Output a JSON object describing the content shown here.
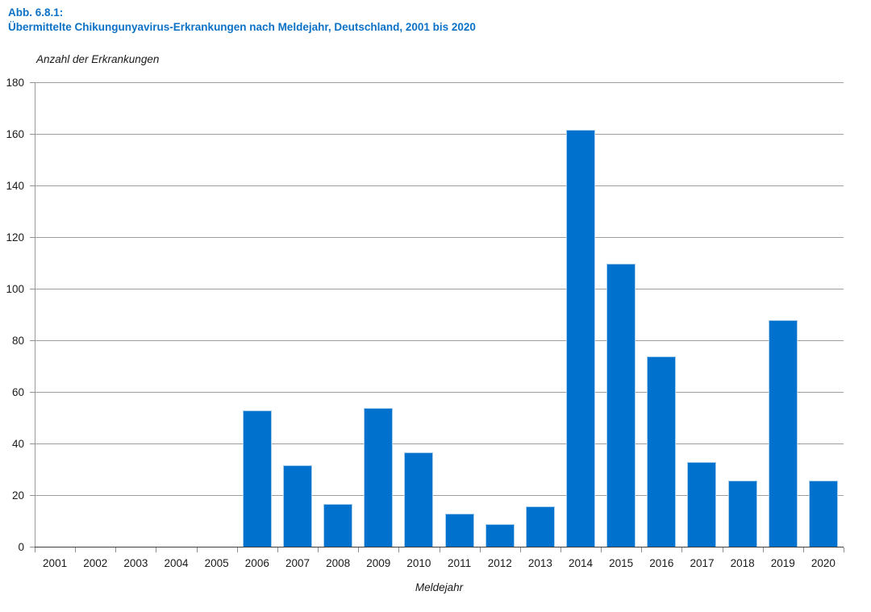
{
  "figure": {
    "label": "Abb. 6.8.1:",
    "title": "Übermittelte Chikungunyavirus-Erkrankungen nach Meldejahr, Deutschland, 2001 bis 2020"
  },
  "chart_data": {
    "type": "bar",
    "title": "Übermittelte Chikungunyavirus-Erkrankungen nach Meldejahr, Deutschland, 2001 bis 2020",
    "xlabel": "Meldejahr",
    "ylabel": "Anzahl der Erkrankungen",
    "categories": [
      "2001",
      "2002",
      "2003",
      "2004",
      "2005",
      "2006",
      "2007",
      "2008",
      "2009",
      "2010",
      "2011",
      "2012",
      "2013",
      "2014",
      "2015",
      "2016",
      "2017",
      "2018",
      "2019",
      "2020"
    ],
    "values": [
      0,
      0,
      0,
      0,
      0,
      53,
      32,
      17,
      54,
      37,
      13,
      9,
      16,
      162,
      110,
      74,
      33,
      26,
      88,
      26
    ],
    "ylim": [
      0,
      180
    ],
    "ytick_step": 20,
    "grid": true,
    "legend": false
  },
  "colors": {
    "title_blue": "#0d72c6",
    "bar_fill": "#0072ce",
    "bar_highlight": "#a6cdec",
    "gridline": "#9d9d9d",
    "axis_dark": "#3f3f3f",
    "axis_grey": "#9a9a9a",
    "tick": "#8c8c8c",
    "text": "#1a1a1a"
  }
}
